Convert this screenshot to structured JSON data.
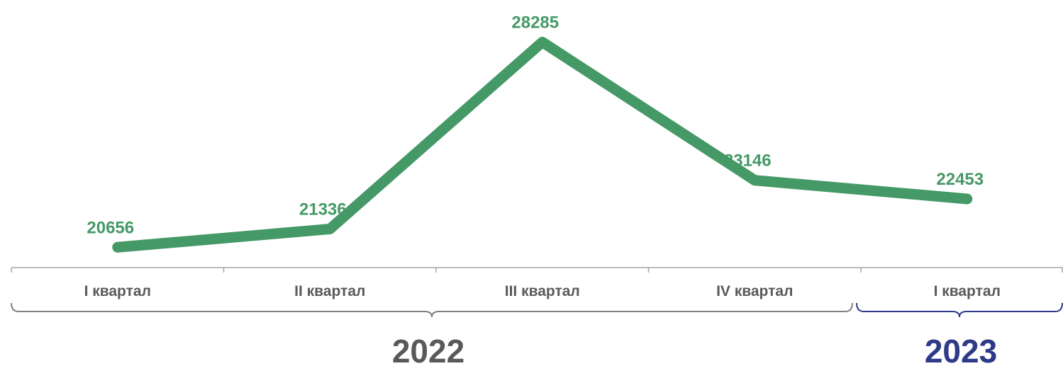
{
  "chart_data": {
    "type": "line",
    "categories": [
      "I квартал",
      "II квартал",
      "III квартал",
      "IV квартал",
      "I квартал"
    ],
    "values": [
      20656,
      21336,
      28285,
      23146,
      22453
    ],
    "data_labels": [
      "20656",
      "21336",
      "28285",
      "23146",
      "22453"
    ],
    "groups": [
      {
        "label": "2022",
        "start": 0,
        "end": 3,
        "color": "#7f7f7f",
        "text_color": "#595959"
      },
      {
        "label": "2023",
        "start": 4,
        "end": 4,
        "color": "#2e3a87",
        "text_color": "#2e3a87"
      }
    ],
    "line_color": "#459966",
    "label_color": "#459966",
    "ylim": [
      19900,
      28700
    ],
    "grid": false,
    "legend": "none"
  }
}
